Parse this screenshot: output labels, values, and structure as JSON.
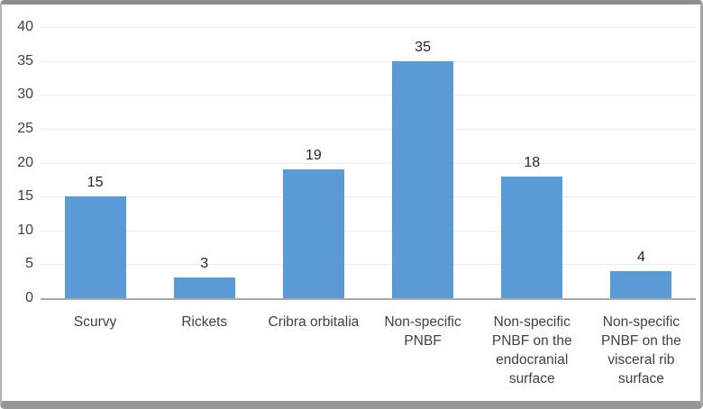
{
  "chart_data": {
    "type": "bar",
    "categories": [
      "Scurvy",
      "Rickets",
      "Cribra orbitalia",
      "Non-specific PNBF",
      "Non-specific PNBF on the endocranial surface",
      "Non-specific PNBF on the visceral rib surface"
    ],
    "values": [
      15,
      3,
      19,
      35,
      18,
      4
    ],
    "data_labels": [
      "15",
      "3",
      "19",
      "35",
      "18",
      "4"
    ],
    "title": "",
    "xlabel": "",
    "ylabel": "",
    "ylim": [
      0,
      40
    ],
    "yticks": [
      0,
      5,
      10,
      15,
      20,
      25,
      30,
      35,
      40
    ],
    "grid": true,
    "legend": false,
    "bar_color": "#5b9bd5",
    "gridline_color": "#ececec",
    "axis_line_color": "#a9a9a9",
    "tick_label_color": "#404040",
    "data_label_color": "#262626",
    "frame_border_color": "#979797",
    "background_color": "#ffffff"
  }
}
